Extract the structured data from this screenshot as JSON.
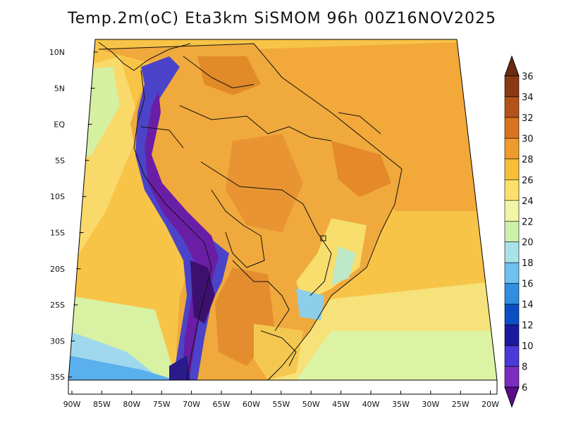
{
  "title": "Temp.2m(oC) Eta3km SiSMOM 96h 00Z16NOV2025",
  "map": {
    "lat_labels": [
      "10N",
      "5N",
      "EQ",
      "5S",
      "10S",
      "15S",
      "20S",
      "25S",
      "30S",
      "35S"
    ],
    "lon_labels": [
      "90W",
      "85W",
      "80W",
      "75W",
      "70W",
      "65W",
      "60W",
      "55W",
      "50W",
      "45W",
      "40W",
      "35W",
      "30W",
      "25W",
      "20W"
    ]
  },
  "colorbar": {
    "labels": [
      "36",
      "34",
      "32",
      "30",
      "28",
      "26",
      "24",
      "22",
      "20",
      "18",
      "16",
      "14",
      "12",
      "10",
      "8",
      "6"
    ],
    "colors": [
      "#6b2b10",
      "#8a3a12",
      "#b3531a",
      "#d8731f",
      "#ee9a2c",
      "#f7be38",
      "#fbe16a",
      "#f2f5a6",
      "#cdf0a8",
      "#a8e3e8",
      "#6fc2f0",
      "#2f8ee0",
      "#0c4fc4",
      "#1a1aa0",
      "#4b3ad8",
      "#7a2dbf",
      "#5a0e8c"
    ]
  }
}
